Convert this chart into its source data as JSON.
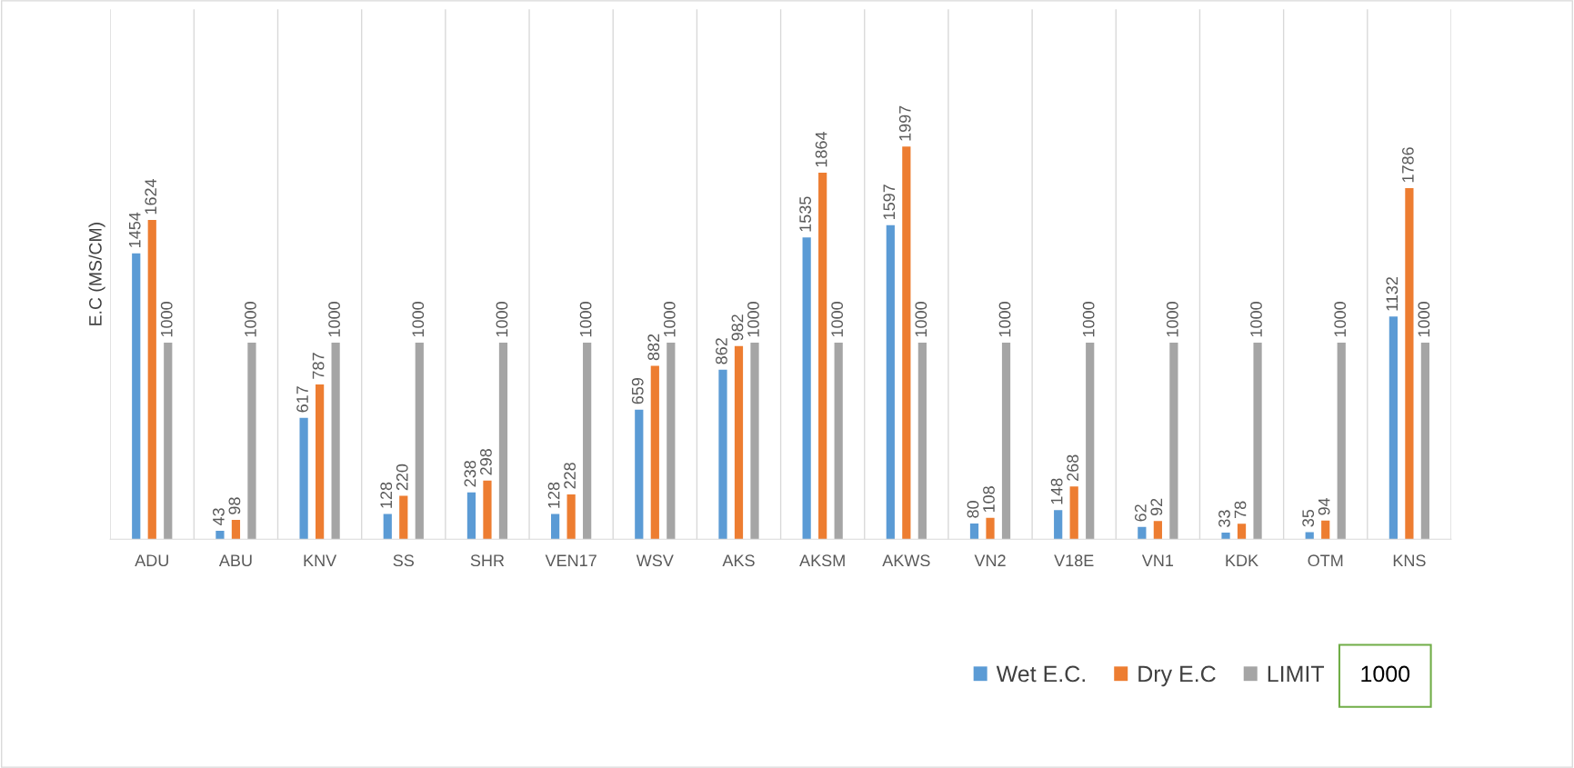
{
  "chart_data": {
    "type": "bar",
    "ylabel": "E.C (MS/CM)",
    "categories": [
      "ADU",
      "ABU",
      "KNV",
      "SS",
      "SHR",
      "VEN17",
      "WSV",
      "AKS",
      "AKSM",
      "AKWS",
      "VN2",
      "V18E",
      "VN1",
      "KDK",
      "OTM",
      "KNS"
    ],
    "series": [
      {
        "name": "Wet E.C.",
        "color": "#5b9bd5",
        "values": [
          1454,
          43,
          617,
          128,
          238,
          128,
          659,
          862,
          1535,
          1597,
          80,
          148,
          62,
          33,
          35,
          1132
        ]
      },
      {
        "name": "Dry E.C",
        "color": "#ed7d31",
        "values": [
          1624,
          98,
          787,
          220,
          298,
          228,
          882,
          982,
          1864,
          1997,
          108,
          268,
          92,
          78,
          94,
          1786
        ]
      },
      {
        "name": "LIMIT",
        "color": "#a5a5a5",
        "values": [
          1000,
          1000,
          1000,
          1000,
          1000,
          1000,
          1000,
          1000,
          1000,
          1000,
          1000,
          1000,
          1000,
          1000,
          1000,
          1000
        ]
      }
    ],
    "data_labels": true,
    "grid": "x",
    "legend": "bottom right",
    "annotations": [
      "1000"
    ]
  }
}
